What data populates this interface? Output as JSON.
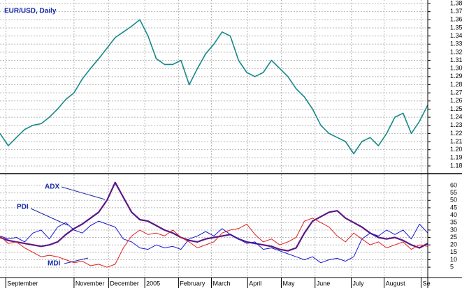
{
  "chart_data": [
    {
      "type": "line",
      "title": "EUR/USD, Daily",
      "series": [
        {
          "name": "EUR/USD",
          "color": "#16898a",
          "values": [
            1.22,
            1.205,
            1.215,
            1.225,
            1.23,
            1.232,
            1.24,
            1.25,
            1.262,
            1.27,
            1.287,
            1.3,
            1.312,
            1.325,
            1.338,
            1.345,
            1.352,
            1.36,
            1.34,
            1.312,
            1.305,
            1.305,
            1.31,
            1.28,
            1.3,
            1.318,
            1.33,
            1.345,
            1.34,
            1.31,
            1.295,
            1.29,
            1.295,
            1.31,
            1.3,
            1.29,
            1.275,
            1.265,
            1.25,
            1.23,
            1.22,
            1.215,
            1.21,
            1.195,
            1.21,
            1.215,
            1.205,
            1.22,
            1.24,
            1.245,
            1.22,
            1.235,
            1.255
          ]
        }
      ],
      "xlim": [
        0,
        52
      ],
      "ylim": [
        1.1714,
        1.3843
      ],
      "yticks": [
        1.18,
        1.19,
        {
          "value": 1.2,
          "label": "1.20"
        },
        1.21,
        1.22,
        1.23,
        1.24,
        1.25,
        1.26,
        1.27,
        1.28,
        1.29,
        {
          "value": 1.3,
          "label": "1.30"
        },
        1.31,
        1.32,
        1.33,
        1.34,
        1.35,
        1.36,
        1.37,
        1.38
      ],
      "grid": true
    },
    {
      "type": "line",
      "series": [
        {
          "name": "ADX",
          "color": "#5b1786",
          "values": [
            25,
            23,
            22,
            21,
            20,
            19,
            20,
            22,
            27,
            31,
            34,
            38,
            42,
            50,
            62,
            52,
            42,
            37,
            36,
            33,
            30,
            28,
            25,
            23,
            22,
            24,
            25,
            26,
            27,
            24,
            22,
            21,
            20,
            19,
            17,
            16,
            18,
            28,
            36,
            39,
            42,
            43,
            38,
            35,
            32,
            28,
            25,
            24,
            25,
            23,
            20,
            18,
            21
          ]
        },
        {
          "name": "PDI",
          "color": "#1a1ad0",
          "values": [
            26,
            24,
            25,
            22,
            28,
            30,
            24,
            32,
            35,
            30,
            28,
            33,
            36,
            34,
            32,
            24,
            22,
            18,
            17,
            20,
            18,
            19,
            17,
            24,
            26,
            29,
            26,
            31,
            27,
            24,
            21,
            22,
            17,
            18,
            16,
            14,
            12,
            10,
            12,
            8,
            10,
            11,
            9,
            12,
            24,
            28,
            26,
            30,
            27,
            30,
            24,
            34,
            28
          ]
        },
        {
          "name": "MDI",
          "color": "#e02020",
          "values": [
            26,
            21,
            22,
            18,
            15,
            12,
            13,
            12,
            10,
            8,
            9,
            6,
            7,
            5,
            7,
            18,
            26,
            30,
            27,
            28,
            26,
            30,
            25,
            22,
            18,
            20,
            22,
            28,
            30,
            31,
            34,
            27,
            22,
            24,
            20,
            22,
            25,
            36,
            38,
            35,
            32,
            26,
            22,
            28,
            24,
            20,
            22,
            18,
            20,
            22,
            17,
            20,
            19
          ]
        }
      ],
      "annotations": [
        "ADX",
        "PDI",
        "MDI"
      ],
      "xlim": [
        0,
        52
      ],
      "ylim": [
        -1.5,
        67.5
      ],
      "yticks": [
        5,
        10,
        15,
        20,
        25,
        30,
        35,
        40,
        45,
        50,
        55,
        60
      ],
      "xticks": [
        {
          "value": 0.7,
          "label": "September"
        },
        {
          "value": 9,
          "label": "November"
        },
        {
          "value": 13.2,
          "label": "December"
        },
        {
          "value": 17.6,
          "label": "2005"
        },
        {
          "value": 21.7,
          "label": "February"
        },
        {
          "value": 25.7,
          "label": "March"
        },
        {
          "value": 30.1,
          "label": "April"
        },
        {
          "value": 34.2,
          "label": "May"
        },
        {
          "value": 38.3,
          "label": "June"
        },
        {
          "value": 42.7,
          "label": "July"
        },
        {
          "value": 46.7,
          "label": "August"
        },
        {
          "value": 51.2,
          "label": "Se"
        }
      ],
      "grid": true
    }
  ]
}
